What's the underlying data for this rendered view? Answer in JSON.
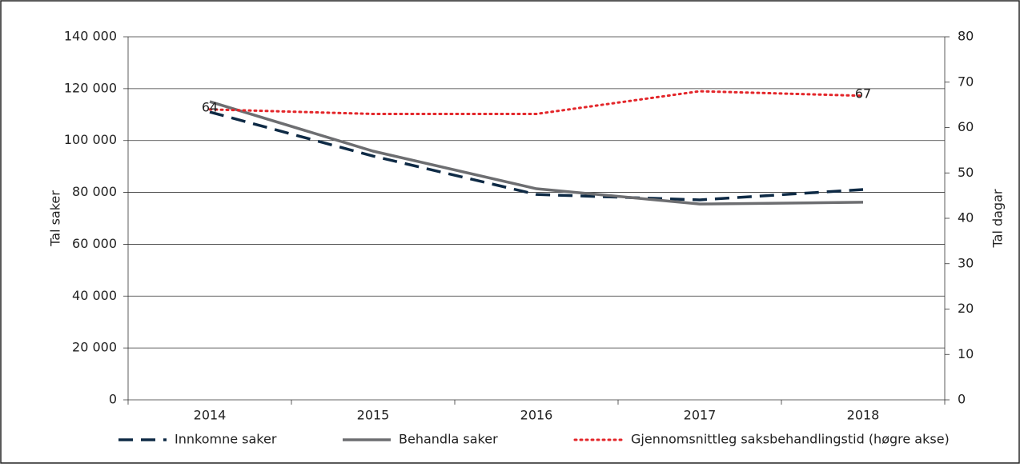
{
  "chart_data": {
    "type": "line",
    "categories": [
      "2014",
      "2015",
      "2016",
      "2017",
      "2018"
    ],
    "series": [
      {
        "name": "Innkomne saker",
        "color": "#0e2a45",
        "style": "dashed",
        "values": [
          111000,
          94000,
          79200,
          77100,
          81100
        ]
      },
      {
        "name": "Behandla saker",
        "color": "#6d6e71",
        "style": "solid",
        "values": [
          115000,
          95900,
          81400,
          75500,
          76200
        ]
      },
      {
        "name": "Gjennomsnittleg saksbehandlingstid (høgre akse)",
        "color": "#e3262a",
        "style": "dotted",
        "axis": "y2",
        "values": [
          64,
          63,
          63,
          68,
          67
        ],
        "value_labels": [
          "64",
          null,
          null,
          null,
          "67"
        ]
      }
    ],
    "ylabel": "Tal saker",
    "y2label": "Tal dagar",
    "ylim": [
      0,
      140000
    ],
    "yticks": [
      {
        "value": 0,
        "label": "0"
      },
      {
        "value": 20000,
        "label": "20 000"
      },
      {
        "value": 40000,
        "label": "40 000"
      },
      {
        "value": 60000,
        "label": "60 000"
      },
      {
        "value": 80000,
        "label": "80 000"
      },
      {
        "value": 100000,
        "label": "100 000"
      },
      {
        "value": 120000,
        "label": "120 000"
      },
      {
        "value": 140000,
        "label": "140 000"
      }
    ],
    "y2lim": [
      0,
      80
    ],
    "y2ticks": [
      0,
      10,
      20,
      30,
      40,
      50,
      60,
      70,
      80
    ],
    "grid": true,
    "legend": "bottom"
  }
}
